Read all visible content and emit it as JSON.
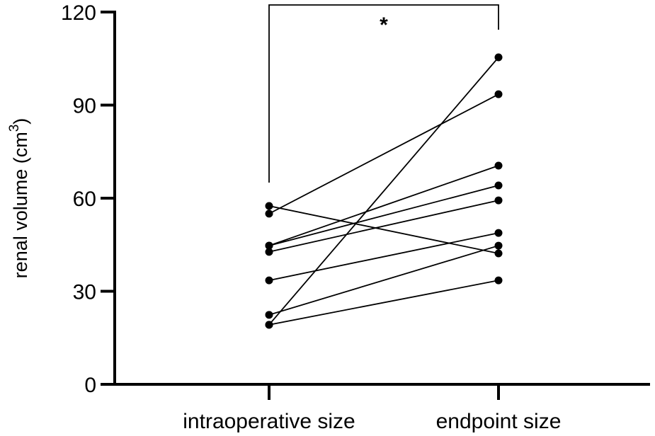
{
  "chart_data": {
    "type": "line",
    "subtype": "paired before-after dot plot",
    "title": "",
    "xlabel": "",
    "ylabel": "renal volume (cm3)",
    "ylabel_main": "renal volume (cm",
    "ylabel_sup": "3",
    "ylabel_close": ")",
    "ylim": [
      0,
      120
    ],
    "yticks": [
      0,
      30,
      60,
      90,
      120
    ],
    "ytick_labels": [
      "0",
      "30",
      "60",
      "90",
      "120"
    ],
    "categories": [
      "intraoperative size",
      "endpoint size"
    ],
    "grid": false,
    "legend": null,
    "significance": {
      "between": [
        "intraoperative size",
        "endpoint size"
      ],
      "label": "*"
    },
    "pairs": [
      {
        "intraoperative": 57.5,
        "endpoint": 42.2
      },
      {
        "intraoperative": 55.0,
        "endpoint": 93.5
      },
      {
        "intraoperative": 44.7,
        "endpoint": 70.5
      },
      {
        "intraoperative": 44.7,
        "endpoint": 64.1
      },
      {
        "intraoperative": 42.7,
        "endpoint": 59.3
      },
      {
        "intraoperative": 33.5,
        "endpoint": 48.8
      },
      {
        "intraoperative": 22.4,
        "endpoint": 44.7
      },
      {
        "intraoperative": 19.2,
        "endpoint": 105.4
      },
      {
        "intraoperative": 19.2,
        "endpoint": 33.5
      }
    ]
  },
  "colors": {
    "line": "#000000",
    "point": "#000000",
    "background": "#ffffff"
  }
}
